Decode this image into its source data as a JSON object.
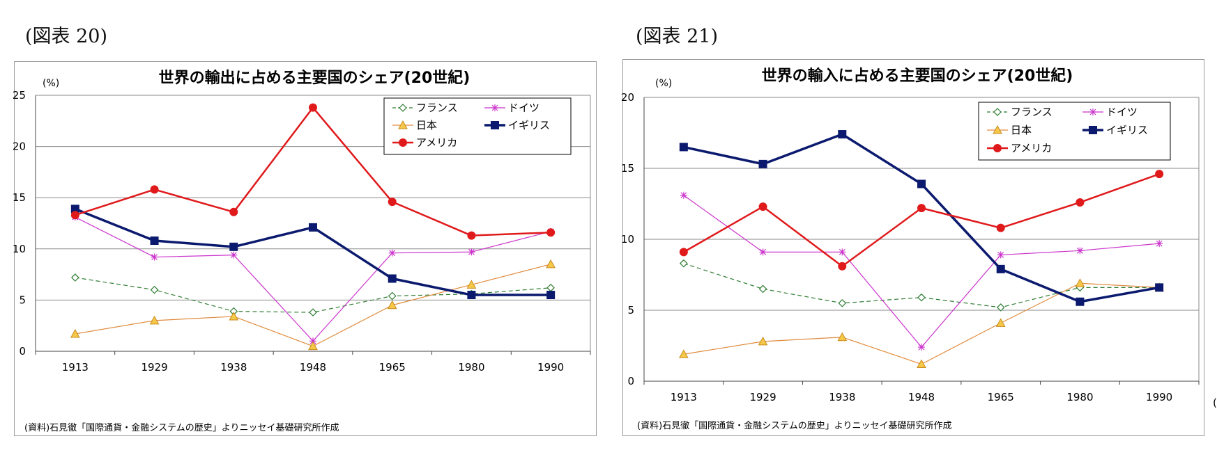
{
  "figure_labels": [
    "(図表 20)",
    "(図表 21)"
  ],
  "chart_data": [
    {
      "type": "line",
      "title": "世界の輸出に占める主要国のシェア(20世紀)",
      "ylabel": "(%)",
      "xlabel": "",
      "ylim": [
        0,
        25
      ],
      "yticks": [
        0,
        5,
        10,
        15,
        20,
        25
      ],
      "categories": [
        "1913",
        "1929",
        "1938",
        "1948",
        "1965",
        "1980",
        "1990"
      ],
      "source": "(資料)石見徹「国際通貨・金融システムの歴史」よりニッセイ基礎研究所作成",
      "series": [
        {
          "name": "フランス",
          "color": "#2e7d32",
          "marker": "diamond",
          "dash": true,
          "width": 1.2,
          "values": [
            7.2,
            6.0,
            3.9,
            3.8,
            5.4,
            5.6,
            6.2
          ]
        },
        {
          "name": "ドイツ",
          "color": "#cc33cc",
          "marker": "star",
          "dash": false,
          "width": 1.2,
          "values": [
            13.1,
            9.2,
            9.4,
            1.0,
            9.6,
            9.7,
            11.7
          ]
        },
        {
          "name": "日本",
          "color": "#e08a3c",
          "marker": "triangle",
          "dash": false,
          "width": 1.2,
          "values": [
            1.7,
            3.0,
            3.4,
            0.5,
            4.5,
            6.5,
            8.5
          ]
        },
        {
          "name": "イギリス",
          "color": "#0b1a6e",
          "marker": "square",
          "dash": false,
          "width": 3.5,
          "values": [
            13.9,
            10.8,
            10.2,
            12.1,
            7.1,
            5.5,
            5.5
          ]
        },
        {
          "name": "アメリカ",
          "color": "#e0191b",
          "marker": "circle",
          "dash": false,
          "width": 2.5,
          "values": [
            13.3,
            15.8,
            13.6,
            23.8,
            14.6,
            11.3,
            11.6
          ]
        }
      ]
    },
    {
      "type": "line",
      "title": "世界の輸入に占める主要国のシェア(20世紀)",
      "ylabel": "(%)",
      "xlabel": "(年)",
      "ylim": [
        0,
        20
      ],
      "yticks": [
        0,
        5,
        10,
        15,
        20
      ],
      "categories": [
        "1913",
        "1929",
        "1938",
        "1948",
        "1965",
        "1980",
        "1990"
      ],
      "source": "(資料)石見徹「国際通貨・金融システムの歴史」よりニッセイ基礎研究所作成",
      "series": [
        {
          "name": "フランス",
          "color": "#2e7d32",
          "marker": "diamond",
          "dash": true,
          "width": 1.2,
          "values": [
            8.3,
            6.5,
            5.5,
            5.9,
            5.2,
            6.6,
            6.6
          ]
        },
        {
          "name": "ドイツ",
          "color": "#cc33cc",
          "marker": "star",
          "dash": false,
          "width": 1.2,
          "values": [
            13.1,
            9.1,
            9.1,
            2.4,
            8.9,
            9.2,
            9.7
          ]
        },
        {
          "name": "日本",
          "color": "#e08a3c",
          "marker": "triangle",
          "dash": false,
          "width": 1.2,
          "values": [
            1.9,
            2.8,
            3.1,
            1.2,
            4.1,
            6.9,
            6.6
          ]
        },
        {
          "name": "イギリス",
          "color": "#0b1a6e",
          "marker": "square",
          "dash": false,
          "width": 3.5,
          "values": [
            16.5,
            15.3,
            17.4,
            13.9,
            7.9,
            5.6,
            6.6
          ]
        },
        {
          "name": "アメリカ",
          "color": "#e0191b",
          "marker": "circle",
          "dash": false,
          "width": 2.5,
          "values": [
            9.1,
            12.3,
            8.1,
            12.2,
            10.8,
            12.6,
            14.6
          ]
        }
      ]
    }
  ]
}
